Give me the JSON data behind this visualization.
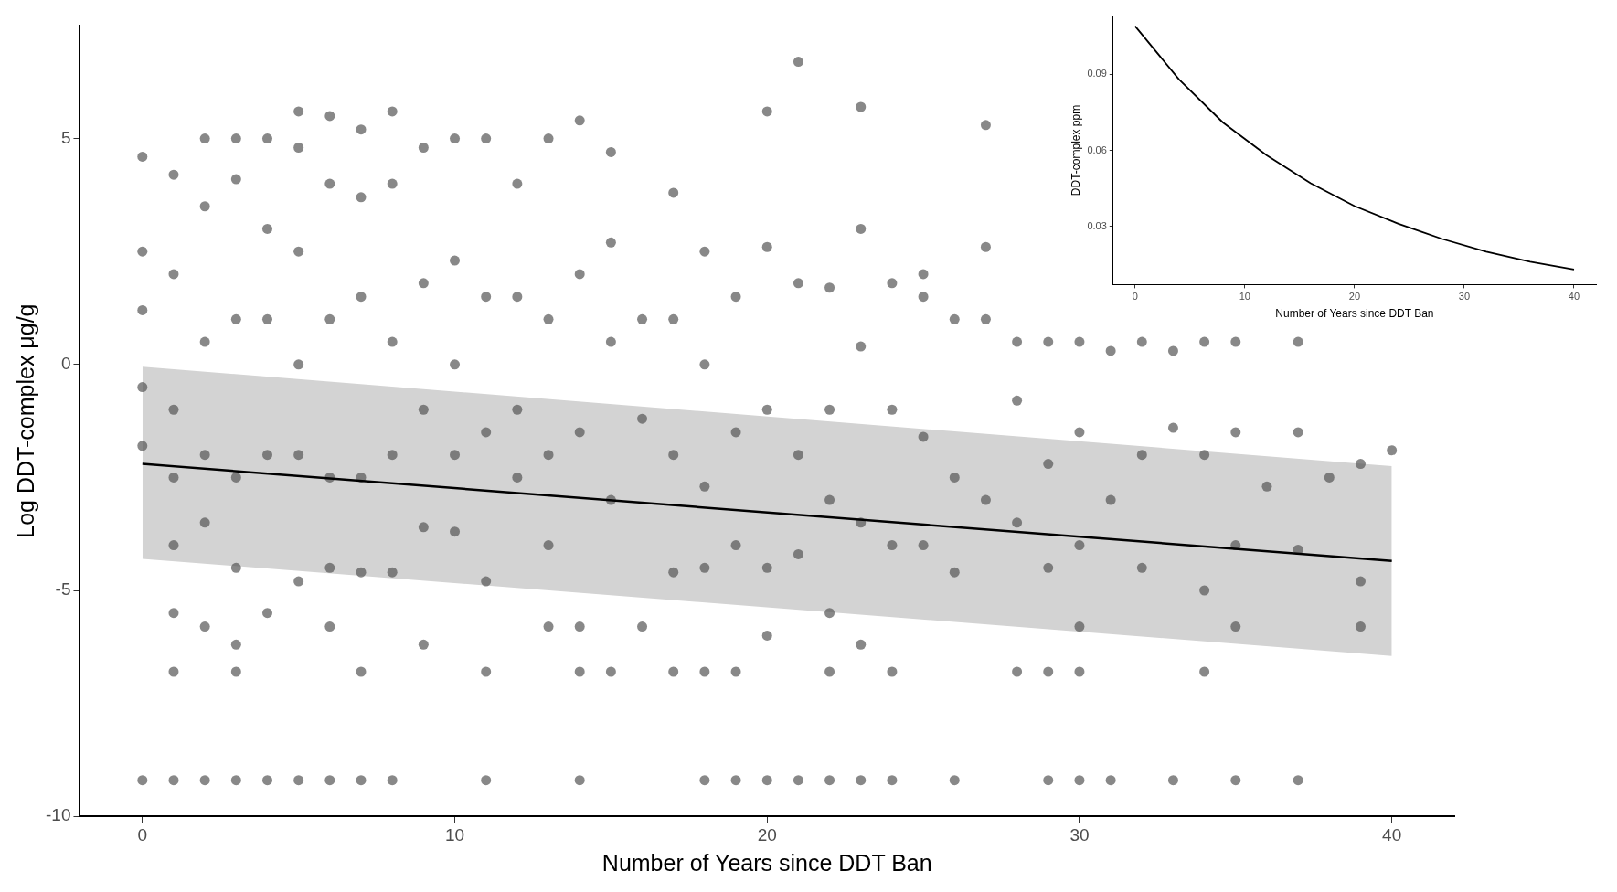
{
  "chart_data": [
    {
      "type": "scatter",
      "xlabel": "Number of Years since DDT Ban",
      "ylabel": "Log DDT-complex μg/g",
      "xlim": [
        -2,
        42
      ],
      "ylim": [
        -10,
        7.5
      ],
      "xticks": [
        0,
        10,
        20,
        30,
        40
      ],
      "yticks": [
        -10,
        -5,
        0,
        5
      ],
      "grid": false,
      "series": [
        {
          "marker": "circle",
          "color": "#555555",
          "x": [
            0,
            0,
            0,
            0,
            0,
            0,
            1,
            1,
            1,
            1,
            1,
            1,
            1,
            1,
            2,
            2,
            2,
            2,
            2,
            2,
            2,
            3,
            3,
            3,
            3,
            3,
            3,
            3,
            3,
            4,
            4,
            4,
            4,
            4,
            4,
            5,
            5,
            5,
            5,
            5,
            5,
            5,
            6,
            6,
            6,
            6,
            6,
            6,
            6,
            7,
            7,
            7,
            7,
            7,
            7,
            7,
            8,
            8,
            8,
            8,
            8,
            8,
            9,
            9,
            9,
            9,
            9,
            10,
            10,
            10,
            10,
            10,
            11,
            11,
            11,
            11,
            11,
            11,
            12,
            12,
            12,
            12,
            13,
            13,
            13,
            13,
            13,
            14,
            14,
            14,
            14,
            14,
            14,
            15,
            15,
            15,
            15,
            15,
            16,
            16,
            16,
            17,
            17,
            17,
            17,
            17,
            18,
            18,
            18,
            18,
            18,
            18,
            19,
            19,
            19,
            19,
            19,
            20,
            20,
            20,
            20,
            20,
            20,
            21,
            21,
            21,
            21,
            21,
            22,
            22,
            22,
            22,
            22,
            22,
            23,
            23,
            23,
            23,
            23,
            23,
            24,
            24,
            24,
            24,
            24,
            25,
            25,
            25,
            25,
            26,
            26,
            26,
            26,
            27,
            27,
            27,
            27,
            28,
            28,
            28,
            28,
            29,
            29,
            29,
            29,
            29,
            30,
            30,
            30,
            30,
            30,
            30,
            31,
            31,
            31,
            32,
            32,
            32,
            33,
            33,
            33,
            34,
            34,
            34,
            34,
            35,
            35,
            35,
            35,
            35,
            36,
            37,
            37,
            37,
            37,
            38,
            39,
            39,
            39,
            40
          ],
          "values": [
            4.6,
            2.5,
            1.2,
            -0.5,
            -1.8,
            -9.2,
            4.2,
            2.0,
            -1.0,
            -2.5,
            -4.0,
            -5.5,
            -6.8,
            -9.2,
            5.0,
            3.5,
            0.5,
            -2.0,
            -3.5,
            -5.8,
            -9.2,
            5.0,
            4.1,
            1.0,
            -2.5,
            -4.5,
            -6.2,
            -6.8,
            -9.2,
            5.0,
            3.0,
            1.0,
            -2.0,
            -5.5,
            -9.2,
            5.6,
            4.8,
            2.5,
            0.0,
            -2.0,
            -4.8,
            -9.2,
            5.5,
            4.0,
            1.0,
            -2.5,
            -4.5,
            -5.8,
            -9.2,
            5.2,
            3.7,
            1.5,
            -2.5,
            -4.6,
            -6.8,
            -9.2,
            5.6,
            4.0,
            0.5,
            -2.0,
            -4.6,
            -9.2,
            4.8,
            1.8,
            -1.0,
            -3.6,
            -6.2,
            5.0,
            2.3,
            0.0,
            -2.0,
            -3.7,
            5.0,
            1.5,
            -1.5,
            -4.8,
            -6.8,
            -9.2,
            4.0,
            1.5,
            -1.0,
            -2.5,
            5.0,
            1.0,
            -2.0,
            -4.0,
            -5.8,
            5.4,
            2.0,
            -1.5,
            -5.8,
            -6.8,
            -9.2,
            4.7,
            2.7,
            0.5,
            -3.0,
            -6.8,
            1.0,
            -1.2,
            -5.8,
            3.8,
            1.0,
            -2.0,
            -4.6,
            -6.8,
            2.5,
            0.0,
            -2.7,
            -4.5,
            -6.8,
            -9.2,
            1.5,
            -1.5,
            -4.0,
            -6.8,
            -9.2,
            5.6,
            2.6,
            -1.0,
            -4.5,
            -6.0,
            -9.2,
            6.7,
            1.8,
            -2.0,
            -4.2,
            -9.2,
            1.7,
            -1.0,
            -3.0,
            -5.5,
            -6.8,
            -9.2,
            5.7,
            3.0,
            0.4,
            -3.5,
            -6.2,
            -9.2,
            1.8,
            -1.0,
            -4.0,
            -6.8,
            -9.2,
            2.0,
            1.5,
            -1.6,
            -4.0,
            1.0,
            -2.5,
            -4.6,
            -9.2,
            5.3,
            2.6,
            1.0,
            -3.0,
            0.5,
            -0.8,
            -3.5,
            -6.8,
            0.5,
            -2.2,
            -4.5,
            -6.8,
            -9.2,
            0.5,
            -1.5,
            -4.0,
            -5.8,
            -6.8,
            -9.2,
            0.3,
            -3.0,
            -9.2,
            0.5,
            -2.0,
            -4.5,
            0.3,
            -1.4,
            -9.2,
            0.5,
            -2.0,
            -5.0,
            -6.8,
            0.5,
            -1.5,
            -4.0,
            -5.8,
            -9.2,
            -2.7,
            0.5,
            -1.5,
            -4.1,
            -9.2,
            -2.5,
            -2.2,
            -4.8,
            -5.8,
            -1.9
          ]
        },
        {
          "type": "line",
          "color": "#000000",
          "x": [
            0,
            40
          ],
          "values": [
            -2.2,
            -4.35
          ],
          "lower": [
            -4.3,
            -6.45
          ],
          "upper": [
            -0.05,
            -2.25
          ]
        }
      ]
    },
    {
      "type": "line",
      "xlabel": "Number of Years since DDT Ban",
      "ylabel": "DDT-complex ppm",
      "xlim": [
        -2,
        42
      ],
      "ylim": [
        0.007,
        0.113
      ],
      "xticks": [
        0,
        10,
        20,
        30,
        40
      ],
      "yticks": [
        0.03,
        0.06,
        0.09
      ],
      "grid": false,
      "series": [
        {
          "color": "#000000",
          "x": [
            0,
            4,
            8,
            12,
            16,
            20,
            24,
            28,
            32,
            36,
            40
          ],
          "values": [
            0.109,
            0.088,
            0.071,
            0.058,
            0.047,
            0.038,
            0.031,
            0.025,
            0.02,
            0.016,
            0.013
          ]
        }
      ]
    }
  ]
}
